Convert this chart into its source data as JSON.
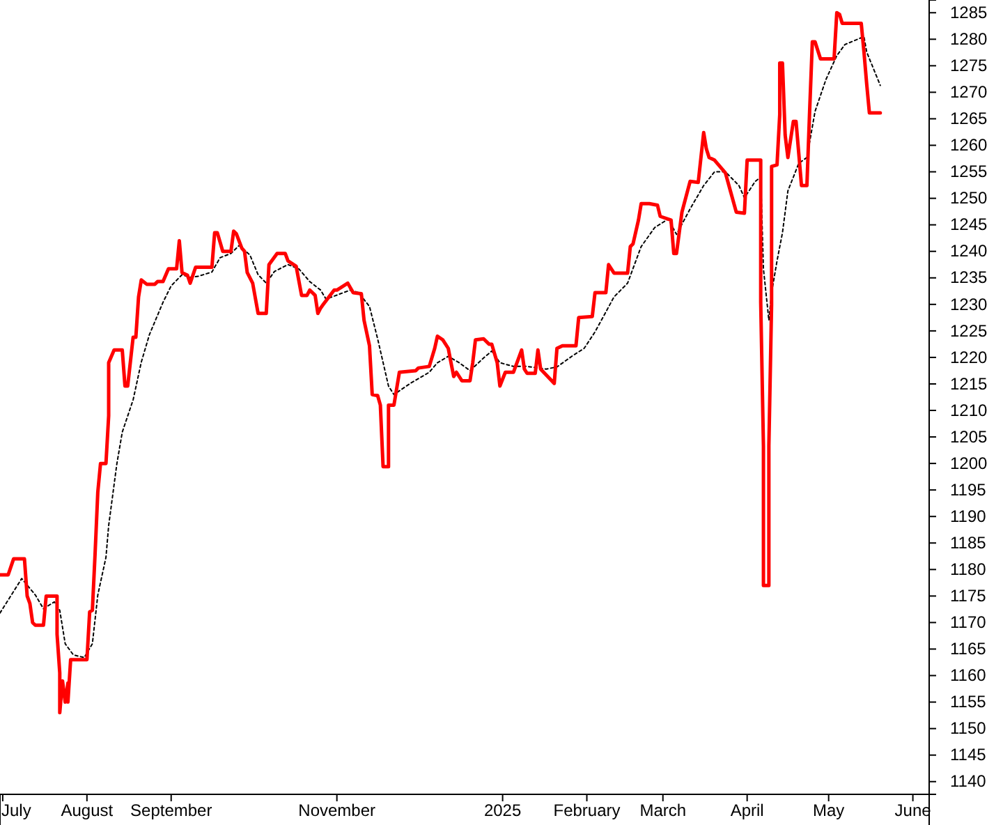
{
  "chart_data": {
    "type": "line",
    "xlim": [
      "2024-06-30",
      "2025-06-07"
    ],
    "xticks": [
      {
        "value": "2024-07-01",
        "label": "July"
      },
      {
        "value": "2024-08-01",
        "label": "August"
      },
      {
        "value": "2024-09-01",
        "label": "September"
      },
      {
        "value": "2024-11-01",
        "label": "November"
      },
      {
        "value": "2025-01-01",
        "label": "2025"
      },
      {
        "value": "2025-02-01",
        "label": "February"
      },
      {
        "value": "2025-03-01",
        "label": "March"
      },
      {
        "value": "2025-04-01",
        "label": "April"
      },
      {
        "value": "2025-05-01",
        "label": "May"
      },
      {
        "value": "2025-06-01",
        "label": "June"
      }
    ],
    "ylim": [
      1137.6,
      1287.4
    ],
    "yticks": [
      1140,
      1145,
      1150,
      1155,
      1160,
      1165,
      1170,
      1175,
      1180,
      1185,
      1190,
      1195,
      1200,
      1205,
      1210,
      1215,
      1220,
      1225,
      1230,
      1235,
      1240,
      1245,
      1250,
      1255,
      1260,
      1265,
      1270,
      1275,
      1280,
      1285
    ],
    "series": [
      {
        "color": "#ff0000",
        "line_style": "solid",
        "x": [
          "2024-06-30",
          "2024-07-03",
          "2024-07-05",
          "2024-07-08",
          "2024-07-09",
          "2024-07-10",
          "2024-07-11",
          "2024-07-12",
          "2024-07-13",
          "2024-07-16",
          "2024-07-17",
          "2024-07-21",
          "2024-07-21",
          "2024-07-22",
          "2024-07-22",
          "2024-07-23",
          "2024-07-24",
          "2024-07-25",
          "2024-07-25",
          "2024-07-26",
          "2024-08-01",
          "2024-08-02",
          "2024-08-03",
          "2024-08-04",
          "2024-08-05",
          "2024-08-06",
          "2024-08-08",
          "2024-08-09",
          "2024-08-09",
          "2024-08-11",
          "2024-08-14",
          "2024-08-15",
          "2024-08-16",
          "2024-08-18",
          "2024-08-19",
          "2024-08-20",
          "2024-08-21",
          "2024-08-23",
          "2024-08-26",
          "2024-08-27",
          "2024-08-29",
          "2024-08-31",
          "2024-09-03",
          "2024-09-04",
          "2024-09-05",
          "2024-09-07",
          "2024-09-08",
          "2024-09-10",
          "2024-09-16",
          "2024-09-17",
          "2024-09-18",
          "2024-09-20",
          "2024-09-23",
          "2024-09-24",
          "2024-09-25",
          "2024-09-27",
          "2024-09-28",
          "2024-09-29",
          "2024-10-01",
          "2024-10-03",
          "2024-10-06",
          "2024-10-07",
          "2024-10-10",
          "2024-10-13",
          "2024-10-14",
          "2024-10-17",
          "2024-10-19",
          "2024-10-21",
          "2024-10-22",
          "2024-10-24",
          "2024-10-25",
          "2024-10-26",
          "2024-10-27",
          "2024-10-31",
          "2024-11-01",
          "2024-11-05",
          "2024-11-07",
          "2024-11-10",
          "2024-11-11",
          "2024-11-13",
          "2024-11-14",
          "2024-11-16",
          "2024-11-17",
          "2024-11-18",
          "2024-11-20",
          "2024-11-20",
          "2024-11-22",
          "2024-11-24",
          "2024-11-30",
          "2024-12-01",
          "2024-12-05",
          "2024-12-07",
          "2024-12-08",
          "2024-12-10",
          "2024-12-12",
          "2024-12-13",
          "2024-12-14",
          "2024-12-15",
          "2024-12-17",
          "2024-12-20",
          "2024-12-21",
          "2024-12-22",
          "2024-12-25",
          "2024-12-27",
          "2024-12-28",
          "2024-12-30",
          "2024-12-31",
          "2025-01-02",
          "2025-01-05",
          "2025-01-08",
          "2025-01-09",
          "2025-01-10",
          "2025-01-13",
          "2025-01-14",
          "2025-01-15",
          "2025-01-20",
          "2025-01-21",
          "2025-01-23",
          "2025-01-28",
          "2025-01-29",
          "2025-02-03",
          "2025-02-04",
          "2025-02-08",
          "2025-02-09",
          "2025-02-11",
          "2025-02-16",
          "2025-02-17",
          "2025-02-18",
          "2025-02-20",
          "2025-02-21",
          "2025-02-24",
          "2025-02-27",
          "2025-02-28",
          "2025-03-04",
          "2025-03-05",
          "2025-03-06",
          "2025-03-08",
          "2025-03-11",
          "2025-03-14",
          "2025-03-16",
          "2025-03-17",
          "2025-03-18",
          "2025-03-20",
          "2025-03-24",
          "2025-03-26",
          "2025-03-28",
          "2025-03-31",
          "2025-04-01",
          "2025-04-06",
          "2025-04-06",
          "2025-04-07",
          "2025-04-07",
          "2025-04-09",
          "2025-04-09",
          "2025-04-10",
          "2025-04-10",
          "2025-04-12",
          "2025-04-13",
          "2025-04-13",
          "2025-04-14",
          "2025-04-15",
          "2025-04-16",
          "2025-04-18",
          "2025-04-19",
          "2025-04-20",
          "2025-04-21",
          "2025-04-23",
          "2025-04-24",
          "2025-04-25",
          "2025-04-26",
          "2025-04-28",
          "2025-05-03",
          "2025-05-04",
          "2025-05-05",
          "2025-05-06",
          "2025-05-13",
          "2025-05-14",
          "2025-05-15",
          "2025-05-16",
          "2025-05-20"
        ],
        "values": [
          1179,
          1179,
          1182,
          1182,
          1182,
          1175,
          1173.6,
          1170,
          1169.5,
          1169.5,
          1175,
          1175,
          1167.8,
          1160.5,
          1153,
          1159,
          1155,
          1158.6,
          1155,
          1163,
          1163,
          1172,
          1172.3,
          1183,
          1194.6,
          1200,
          1200,
          1209,
          1219,
          1221.4,
          1221.4,
          1214.6,
          1214.6,
          1223.8,
          1223.8,
          1231.4,
          1234.6,
          1233.8,
          1233.8,
          1234.3,
          1234.3,
          1236.7,
          1236.7,
          1242,
          1236,
          1235.5,
          1234,
          1237,
          1237,
          1243.5,
          1243.5,
          1240,
          1240,
          1243.8,
          1243.3,
          1240.6,
          1240,
          1236,
          1234,
          1228.3,
          1228.3,
          1237.5,
          1239.6,
          1239.6,
          1238.2,
          1237.2,
          1231.7,
          1231.7,
          1232.7,
          1231.7,
          1228.3,
          1229.3,
          1230,
          1232.7,
          1232.7,
          1234,
          1232.2,
          1232,
          1227,
          1222.2,
          1213,
          1212.8,
          1211,
          1199.4,
          1199.4,
          1211,
          1211,
          1217.2,
          1217.5,
          1218,
          1218.3,
          1221.7,
          1224,
          1223.3,
          1221.7,
          1219,
          1216.4,
          1217.2,
          1215.6,
          1215.6,
          1219,
          1223.3,
          1223.5,
          1222.5,
          1222.5,
          1219,
          1214.6,
          1217.2,
          1217.2,
          1221.4,
          1217.8,
          1217,
          1217,
          1221.4,
          1217.8,
          1215.1,
          1221.7,
          1222.2,
          1222.2,
          1227.5,
          1227.7,
          1232.2,
          1232.2,
          1237.5,
          1235.9,
          1235.9,
          1240.9,
          1241.4,
          1245.9,
          1249,
          1249,
          1248.7,
          1246.6,
          1245.9,
          1239.6,
          1239.6,
          1247.4,
          1253.2,
          1253,
          1262.4,
          1259.3,
          1257.7,
          1257.2,
          1254.8,
          1251.1,
          1247.4,
          1247.2,
          1257.2,
          1257.2,
          1230.4,
          1203.3,
          1177,
          1177,
          1203.3,
          1230,
          1256,
          1256.3,
          1265.8,
          1275.5,
          1275.5,
          1261.9,
          1257.7,
          1264.5,
          1264.5,
          1258.5,
          1252.4,
          1252.4,
          1266.4,
          1279.5,
          1279.5,
          1276.3,
          1276.3,
          1285,
          1284.7,
          1283,
          1283,
          1277.6,
          1271.6,
          1266.1,
          1266.1
        ]
      },
      {
        "color": "#000000",
        "line_style": "dotted",
        "x": [
          "2024-06-30",
          "2024-07-08",
          "2024-07-13",
          "2024-07-16",
          "2024-07-20",
          "2024-07-22",
          "2024-07-24",
          "2024-07-27",
          "2024-07-31",
          "2024-08-03",
          "2024-08-05",
          "2024-08-08",
          "2024-08-09",
          "2024-08-12",
          "2024-08-14",
          "2024-08-18",
          "2024-08-21",
          "2024-08-24",
          "2024-08-29",
          "2024-09-01",
          "2024-09-05",
          "2024-09-08",
          "2024-09-11",
          "2024-09-16",
          "2024-09-19",
          "2024-09-23",
          "2024-09-26",
          "2024-09-30",
          "2024-10-03",
          "2024-10-06",
          "2024-10-09",
          "2024-10-14",
          "2024-10-18",
          "2024-10-22",
          "2024-10-26",
          "2024-10-28",
          "2024-11-06",
          "2024-11-09",
          "2024-11-13",
          "2024-11-16",
          "2024-11-20",
          "2024-11-22",
          "2024-11-28",
          "2024-12-05",
          "2024-12-08",
          "2024-12-12",
          "2024-12-16",
          "2024-12-20",
          "2024-12-25",
          "2024-12-28",
          "2024-12-31",
          "2025-01-05",
          "2025-01-10",
          "2025-01-17",
          "2025-01-21",
          "2025-01-27",
          "2025-01-31",
          "2025-02-04",
          "2025-02-11",
          "2025-02-16",
          "2025-02-21",
          "2025-02-26",
          "2025-03-03",
          "2025-03-06",
          "2025-03-11",
          "2025-03-16",
          "2025-03-20",
          "2025-03-24",
          "2025-03-29",
          "2025-03-31",
          "2025-04-04",
          "2025-04-06",
          "2025-04-07",
          "2025-04-09",
          "2025-04-10",
          "2025-04-12",
          "2025-04-14",
          "2025-04-16",
          "2025-04-20",
          "2025-04-23",
          "2025-04-26",
          "2025-04-30",
          "2025-05-04",
          "2025-05-07",
          "2025-05-14",
          "2025-05-15",
          "2025-05-20"
        ],
        "values": [
          1171.8,
          1178.3,
          1175.2,
          1172.6,
          1173.9,
          1172.3,
          1166,
          1163.9,
          1163.4,
          1166,
          1175.2,
          1182.3,
          1188.3,
          1199.9,
          1205.9,
          1212,
          1219.1,
          1224.3,
          1230.4,
          1233.5,
          1235.6,
          1235.1,
          1235.3,
          1236.1,
          1238.8,
          1239.6,
          1241.1,
          1239.3,
          1235.6,
          1234,
          1236.2,
          1237.5,
          1236.7,
          1234.3,
          1232.7,
          1231,
          1232.7,
          1232.2,
          1229.6,
          1223.5,
          1214.6,
          1213,
          1215.1,
          1217.2,
          1219,
          1220.2,
          1219,
          1217.5,
          1219.9,
          1221.2,
          1219,
          1218.3,
          1218.3,
          1217.8,
          1218.2,
          1220.4,
          1221.7,
          1224.8,
          1231.4,
          1234,
          1240.9,
          1244.5,
          1246.1,
          1243.2,
          1248,
          1252.4,
          1255,
          1255,
          1252.4,
          1250.1,
          1253.2,
          1254,
          1236.7,
          1227,
          1232.2,
          1238.2,
          1243.5,
          1251.4,
          1256.6,
          1257.7,
          1266.4,
          1272.4,
          1276.9,
          1279,
          1280.5,
          1277.6,
          1271.3
        ]
      }
    ]
  }
}
